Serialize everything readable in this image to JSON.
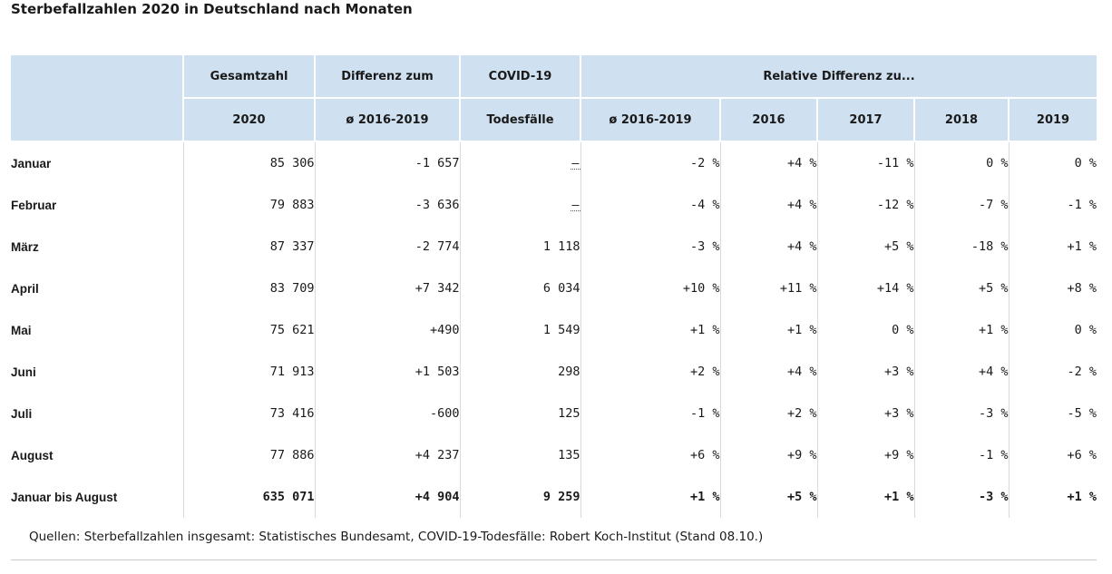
{
  "title": "Sterbefallzahlen 2020 in Deutschland nach Monaten",
  "header": {
    "row1": [
      "",
      "Gesamtzahl",
      "Differenz zum",
      "COVID-19",
      "Relative Differenz zu..."
    ],
    "row2": [
      "2020",
      "ø 2016-2019",
      "Todesfälle",
      "ø 2016-2019",
      "2016",
      "2017",
      "2018",
      "2019"
    ]
  },
  "rows": [
    {
      "month": "Januar",
      "gesamt": "85 306",
      "diff": "-1 657",
      "covid": "–",
      "avg": "-2 %",
      "y2016": "+4 %",
      "y2017": "-11 %",
      "y2018": "0 %",
      "y2019": "0 %"
    },
    {
      "month": "Februar",
      "gesamt": "79 883",
      "diff": "-3 636",
      "covid": "–",
      "avg": "-4 %",
      "y2016": "+4 %",
      "y2017": "-12 %",
      "y2018": "-7 %",
      "y2019": "-1 %"
    },
    {
      "month": "März",
      "gesamt": "87 337",
      "diff": "-2 774",
      "covid": "1 118",
      "avg": "-3 %",
      "y2016": "+4 %",
      "y2017": "+5 %",
      "y2018": "-18 %",
      "y2019": "+1 %"
    },
    {
      "month": "April",
      "gesamt": "83 709",
      "diff": "+7 342",
      "covid": "6 034",
      "avg": "+10 %",
      "y2016": "+11 %",
      "y2017": "+14 %",
      "y2018": "+5 %",
      "y2019": "+8 %"
    },
    {
      "month": "Mai",
      "gesamt": "75 621",
      "diff": "+490",
      "covid": "1 549",
      "avg": "+1 %",
      "y2016": "+1 %",
      "y2017": "0 %",
      "y2018": "+1 %",
      "y2019": "0 %"
    },
    {
      "month": "Juni",
      "gesamt": "71 913",
      "diff": "+1 503",
      "covid": "298",
      "avg": "+2 %",
      "y2016": "+4 %",
      "y2017": "+3 %",
      "y2018": "+4 %",
      "y2019": "-2 %"
    },
    {
      "month": "Juli",
      "gesamt": "73 416",
      "diff": "-600",
      "covid": "125",
      "avg": "-1 %",
      "y2016": "+2 %",
      "y2017": "+3 %",
      "y2018": "-3 %",
      "y2019": "-5 %"
    },
    {
      "month": "August",
      "gesamt": "77 886",
      "diff": "+4 237",
      "covid": "135",
      "avg": "+6 %",
      "y2016": "+9 %",
      "y2017": "+9 %",
      "y2018": "-1 %",
      "y2019": "+6 %"
    },
    {
      "month": "Januar bis August",
      "gesamt": "635 071",
      "diff": "+4 904",
      "covid": "9 259",
      "avg": "+1 %",
      "y2016": "+5 %",
      "y2017": "+1 %",
      "y2018": "-3 %",
      "y2019": "+1 %"
    }
  ],
  "source": "Quellen: Sterbefallzahlen insgesamt: Statistisches Bundesamt, COVID-19-Todesfälle: Robert Koch-Institut (Stand 08.10.)",
  "colors": {
    "header_bg": "#cfe1f0",
    "text": "#1a1a1a",
    "grid": "#d5dbe1"
  }
}
